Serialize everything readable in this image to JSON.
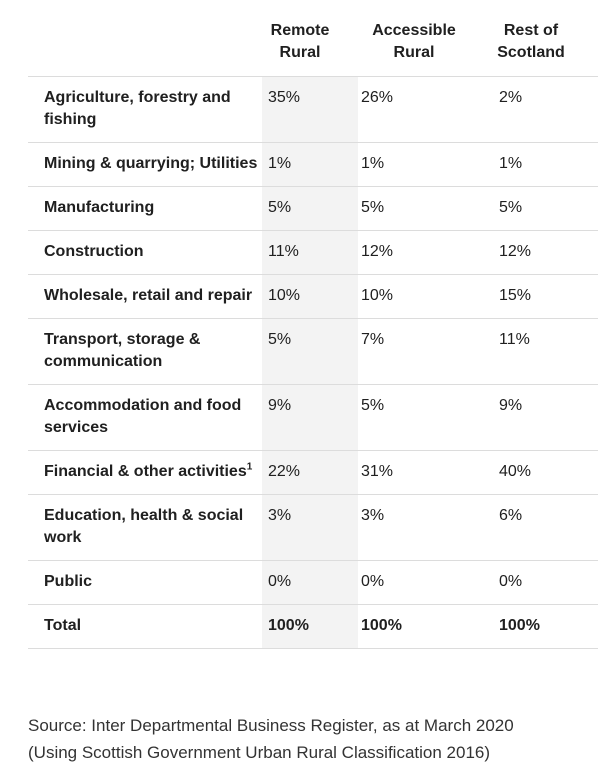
{
  "table": {
    "headers": {
      "remote": [
        "Remote",
        "Rural"
      ],
      "accessible": [
        "Accessible",
        "Rural"
      ],
      "rest": [
        "Rest of",
        "Scotland"
      ]
    },
    "rows": [
      {
        "label": "Agriculture, forestry and fishing",
        "sup": "",
        "remote": "35%",
        "accessible": "26%",
        "rest": "2%"
      },
      {
        "label": "Mining & quarrying; Utilities",
        "sup": "",
        "remote": "1%",
        "accessible": "1%",
        "rest": "1%"
      },
      {
        "label": "Manufacturing",
        "sup": "",
        "remote": "5%",
        "accessible": "5%",
        "rest": "5%"
      },
      {
        "label": "Construction",
        "sup": "",
        "remote": "11%",
        "accessible": "12%",
        "rest": "12%"
      },
      {
        "label": "Wholesale, retail and repair",
        "sup": "",
        "remote": "10%",
        "accessible": "10%",
        "rest": "15%"
      },
      {
        "label": "Transport, storage & communication",
        "sup": "",
        "remote": "5%",
        "accessible": "7%",
        "rest": "11%"
      },
      {
        "label": "Accommodation and food services",
        "sup": "",
        "remote": "9%",
        "accessible": "5%",
        "rest": "9%"
      },
      {
        "label": "Financial & other activities",
        "sup": "1",
        "remote": "22%",
        "accessible": "31%",
        "rest": "40%"
      },
      {
        "label": "Education, health & social work",
        "sup": "",
        "remote": "3%",
        "accessible": "3%",
        "rest": "6%"
      },
      {
        "label": "Public",
        "sup": "",
        "remote": "0%",
        "accessible": "0%",
        "rest": "0%"
      },
      {
        "label": "Total",
        "sup": "",
        "remote": "100%",
        "accessible": "100%",
        "rest": "100%"
      }
    ]
  },
  "source": {
    "line1": "Source: Inter Departmental Business Register, as at March 2020",
    "line2": "(Using Scottish Government Urban Rural Classification 2016)"
  }
}
